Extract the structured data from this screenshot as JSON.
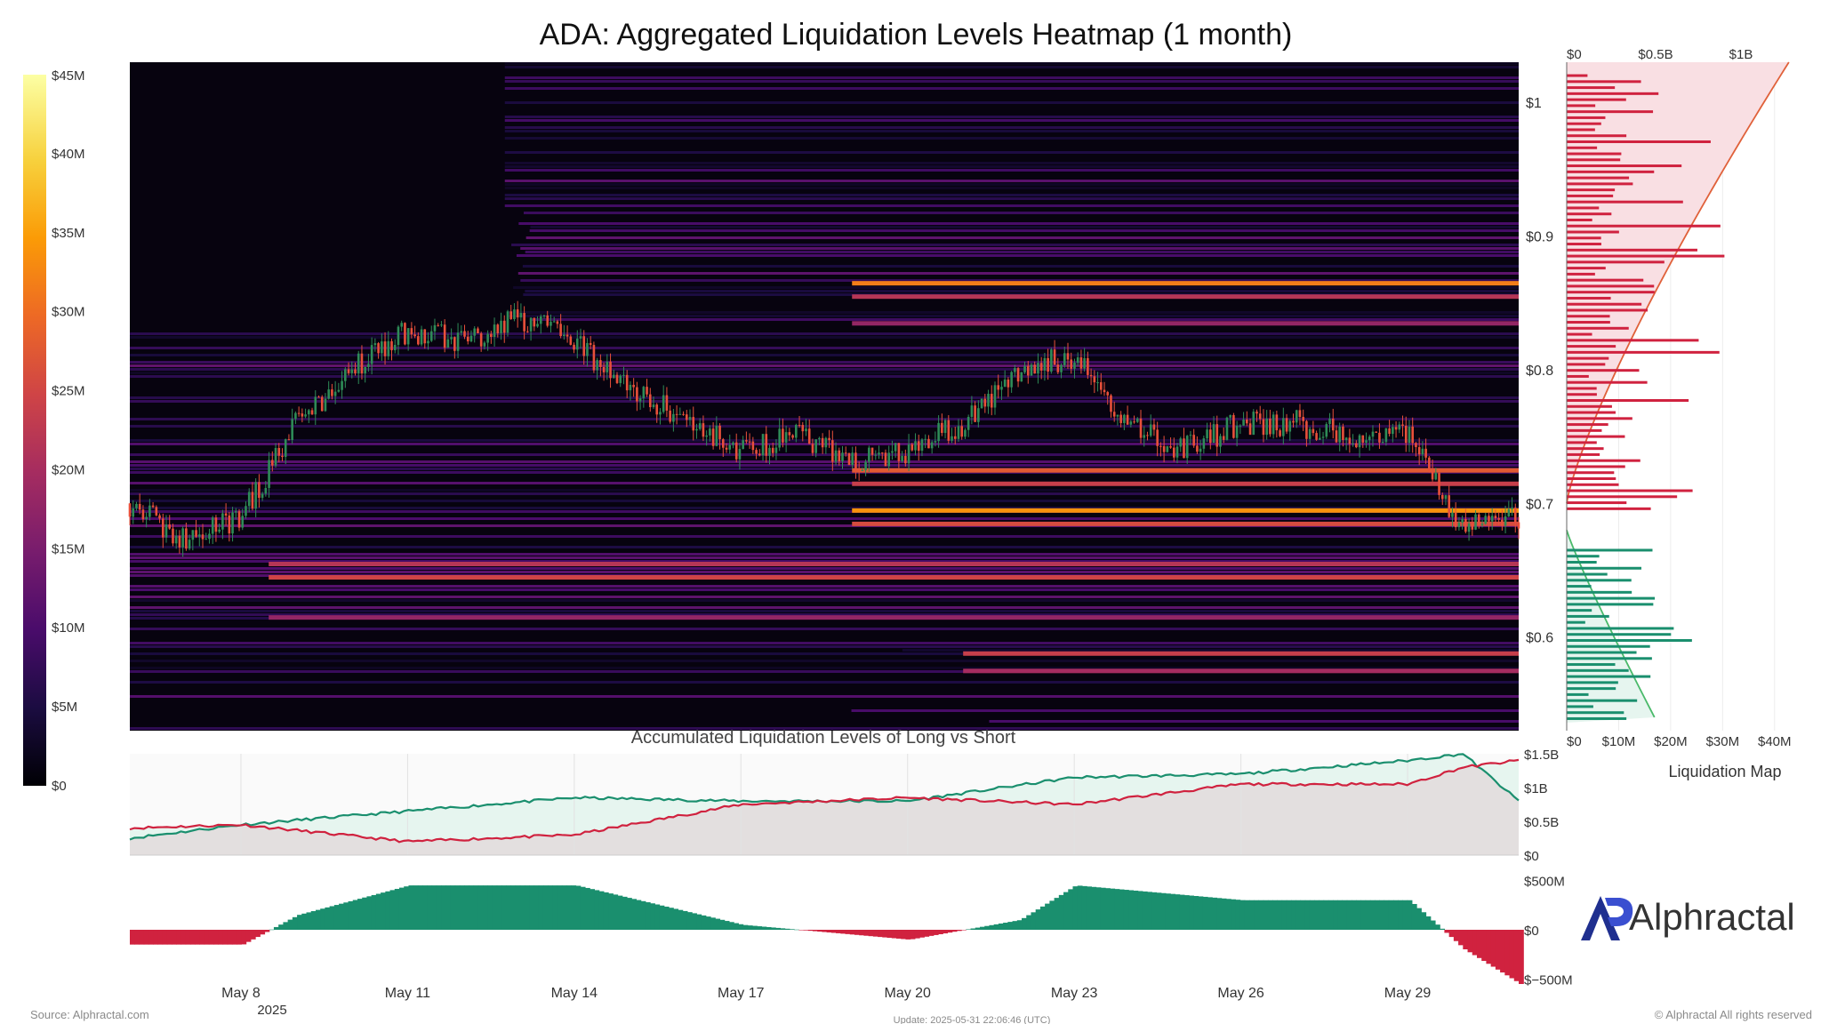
{
  "title": "ADA: Aggregated Liquidation Levels Heatmap (1 month)",
  "colors": {
    "heat_stops": [
      "#000004",
      "#1b0c41",
      "#4a0c6b",
      "#781c6d",
      "#a52c60",
      "#cf4446",
      "#ed6925",
      "#fb9b06",
      "#f7d13d",
      "#fcffa4"
    ],
    "candle_up": "#2e8b57",
    "candle_down": "#e8503a",
    "long": "#1a8f6e",
    "short": "#d0223f",
    "long_fill": "#e6f5ef",
    "short_fill": "#f9dfe3",
    "grey_fill": "#e3dfdf"
  },
  "colorbar": {
    "labels": [
      "$45M",
      "$40M",
      "$35M",
      "$30M",
      "$25M",
      "$20M",
      "$15M",
      "$10M",
      "$5M",
      "$0"
    ]
  },
  "x_axis": {
    "labels": [
      "May 8",
      "May 11",
      "May 14",
      "May 17",
      "May 20",
      "May 23",
      "May 26",
      "May 29"
    ],
    "year": "2025"
  },
  "price_axis": {
    "labels": [
      "$1",
      "$0.9",
      "$0.8",
      "$0.7",
      "$0.6"
    ]
  },
  "side_panel": {
    "top_axis_labels": [
      "$0",
      "$0.5B",
      "$1B"
    ],
    "bottom_axis_labels": [
      "$0",
      "$10M",
      "$20M",
      "$30M",
      "$40M"
    ],
    "caption": "Liquidation Map"
  },
  "accum_panel": {
    "title": "Accumulated Liquidation Levels of Long vs Short",
    "y_labels": [
      "$1.5B",
      "$1B",
      "$0.5B",
      "$0"
    ]
  },
  "delta_panel": {
    "y_labels": [
      "$500M",
      "$0",
      "$−500M"
    ]
  },
  "brand": {
    "name": "Alphractal"
  },
  "footer": {
    "source": "Source: Alphractal.com",
    "update": "Update: 2025-05-31 22:06:46 (UTC)",
    "copyright": "© Alphractal All rights reserved"
  },
  "chart_data": [
    {
      "type": "heatmap",
      "title": "ADA: Aggregated Liquidation Levels Heatmap (1 month)",
      "x_range": [
        "2025-05-06",
        "2025-05-31"
      ],
      "ylim": [
        0.53,
        1.03
      ],
      "color_scale": {
        "min": 0,
        "max": 45000000,
        "unit": "USD"
      },
      "price_candles_close": [
        {
          "date": "2025-05-06",
          "close": 0.7
        },
        {
          "date": "2025-05-07",
          "close": 0.67
        },
        {
          "date": "2025-05-08",
          "close": 0.69
        },
        {
          "date": "2025-05-09",
          "close": 0.76
        },
        {
          "date": "2025-05-10",
          "close": 0.8
        },
        {
          "date": "2025-05-11",
          "close": 0.83
        },
        {
          "date": "2025-05-12",
          "close": 0.82
        },
        {
          "date": "2025-05-13",
          "close": 0.84
        },
        {
          "date": "2025-05-14",
          "close": 0.82
        },
        {
          "date": "2025-05-15",
          "close": 0.79
        },
        {
          "date": "2025-05-16",
          "close": 0.76
        },
        {
          "date": "2025-05-17",
          "close": 0.74
        },
        {
          "date": "2025-05-18",
          "close": 0.75
        },
        {
          "date": "2025-05-19",
          "close": 0.73
        },
        {
          "date": "2025-05-20",
          "close": 0.74
        },
        {
          "date": "2025-05-21",
          "close": 0.76
        },
        {
          "date": "2025-05-22",
          "close": 0.8
        },
        {
          "date": "2025-05-23",
          "close": 0.81
        },
        {
          "date": "2025-05-24",
          "close": 0.76
        },
        {
          "date": "2025-05-25",
          "close": 0.74
        },
        {
          "date": "2025-05-26",
          "close": 0.76
        },
        {
          "date": "2025-05-27",
          "close": 0.76
        },
        {
          "date": "2025-05-28",
          "close": 0.75
        },
        {
          "date": "2025-05-29",
          "close": 0.75
        },
        {
          "date": "2025-05-30",
          "close": 0.68
        },
        {
          "date": "2025-05-31",
          "close": 0.69
        }
      ],
      "liquidation_bands": [
        {
          "price": 0.865,
          "intensity_musd": 32
        },
        {
          "price": 0.855,
          "intensity_musd": 22
        },
        {
          "price": 0.835,
          "intensity_musd": 18
        },
        {
          "price": 0.725,
          "intensity_musd": 28
        },
        {
          "price": 0.715,
          "intensity_musd": 24
        },
        {
          "price": 0.695,
          "intensity_musd": 34
        },
        {
          "price": 0.685,
          "intensity_musd": 26
        },
        {
          "price": 0.655,
          "intensity_musd": 22
        },
        {
          "price": 0.645,
          "intensity_musd": 25
        },
        {
          "price": 0.615,
          "intensity_musd": 18
        },
        {
          "price": 0.588,
          "intensity_musd": 24
        },
        {
          "price": 0.575,
          "intensity_musd": 20
        }
      ]
    },
    {
      "type": "bar",
      "title": "Liquidation Map",
      "orientation": "horizontal",
      "xlim": [
        0,
        45000000
      ],
      "series": [
        {
          "name": "short",
          "values": [
            [
              1.0,
              18
            ],
            [
              0.96,
              12
            ],
            [
              0.93,
              20
            ],
            [
              0.9,
              25
            ],
            [
              0.885,
              40
            ],
            [
              0.87,
              28
            ],
            [
              0.85,
              33
            ],
            [
              0.82,
              22
            ],
            [
              0.8,
              20
            ],
            [
              0.78,
              12
            ]
          ]
        },
        {
          "name": "long",
          "values": [
            [
              0.66,
              40
            ],
            [
              0.65,
              45
            ],
            [
              0.64,
              20
            ],
            [
              0.62,
              22
            ],
            [
              0.6,
              30
            ],
            [
              0.59,
              32
            ],
            [
              0.58,
              18
            ],
            [
              0.56,
              12
            ]
          ]
        }
      ],
      "cumulative_top_xlim": [
        0,
        1250000000
      ]
    },
    {
      "type": "area",
      "title": "Accumulated Liquidation Levels of Long vs Short",
      "ylim": [
        0,
        1500000000
      ],
      "x": [
        "2025-05-06",
        "2025-05-08",
        "2025-05-11",
        "2025-05-14",
        "2025-05-17",
        "2025-05-20",
        "2025-05-23",
        "2025-05-26",
        "2025-05-29",
        "2025-05-30",
        "2025-05-31"
      ],
      "series": [
        {
          "name": "long",
          "values": [
            0.25,
            0.45,
            0.65,
            0.85,
            0.8,
            0.8,
            1.15,
            1.2,
            1.4,
            1.5,
            0.8
          ]
        },
        {
          "name": "short",
          "values": [
            0.4,
            0.45,
            0.2,
            0.3,
            0.75,
            0.85,
            0.75,
            1.05,
            1.05,
            1.3,
            1.4
          ]
        }
      ]
    },
    {
      "type": "area",
      "title": "Long minus Short",
      "ylim": [
        -500000000,
        500000000
      ],
      "x": [
        "2025-05-06",
        "2025-05-08",
        "2025-05-09",
        "2025-05-11",
        "2025-05-14",
        "2025-05-17",
        "2025-05-19",
        "2025-05-20",
        "2025-05-22",
        "2025-05-23",
        "2025-05-26",
        "2025-05-29",
        "2025-05-30",
        "2025-05-31"
      ],
      "values": [
        -0.15,
        -0.15,
        0.15,
        0.45,
        0.45,
        0.05,
        -0.05,
        -0.1,
        0.1,
        0.45,
        0.3,
        0.3,
        -0.2,
        -0.55
      ]
    }
  ]
}
